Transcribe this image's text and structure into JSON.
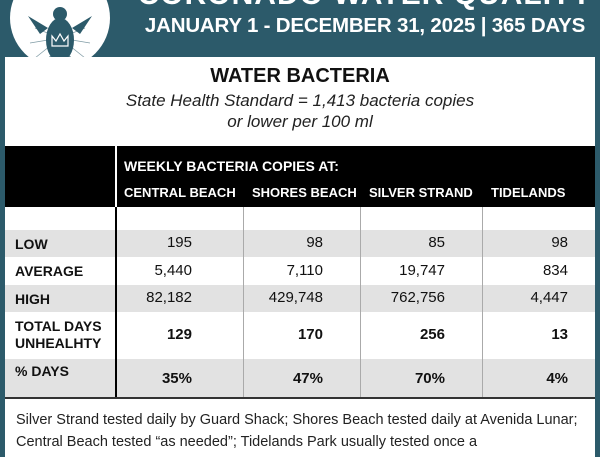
{
  "header": {
    "title": "CORONADO WATER QUALITY",
    "subtitle": "JANUARY 1 - DECEMBER 31, 2025 | 365 DAYS"
  },
  "section": {
    "title": "WATER BACTERIA",
    "standard_line1": "State Health Standard  = 1,413 bacteria copies",
    "standard_line2": "or lower per 100 ml"
  },
  "table": {
    "group_header": "WEEKLY BACTERIA COPIES AT:",
    "columns": [
      "CENTRAL BEACH",
      "SHORES BEACH",
      "SILVER STRAND",
      "TIDELANDS"
    ],
    "rows": [
      {
        "label": "LOW",
        "values": [
          "195",
          "98",
          "85",
          "98"
        ]
      },
      {
        "label": "AVERAGE",
        "values": [
          "5,440",
          "7,110",
          "19,747",
          "834"
        ]
      },
      {
        "label": "HIGH",
        "values": [
          "82,182",
          "429,748",
          "762,756",
          "4,447"
        ]
      },
      {
        "label": "TOTAL DAYS",
        "label2": "UNHEALHTY",
        "values": [
          "129",
          "170",
          "256",
          "13"
        ]
      },
      {
        "label": "% DAYS",
        "values": [
          "35%",
          "47%",
          "70%",
          "4%"
        ]
      }
    ]
  },
  "note": "Silver Strand tested daily by Guard Shack; Shores Beach tested daily at Avenida Lunar; Central Beach tested “as needed”; Tidelands Park usually tested once a",
  "colors": {
    "teal": "#2c5a6a",
    "gray_row": "#e2e2e2"
  }
}
